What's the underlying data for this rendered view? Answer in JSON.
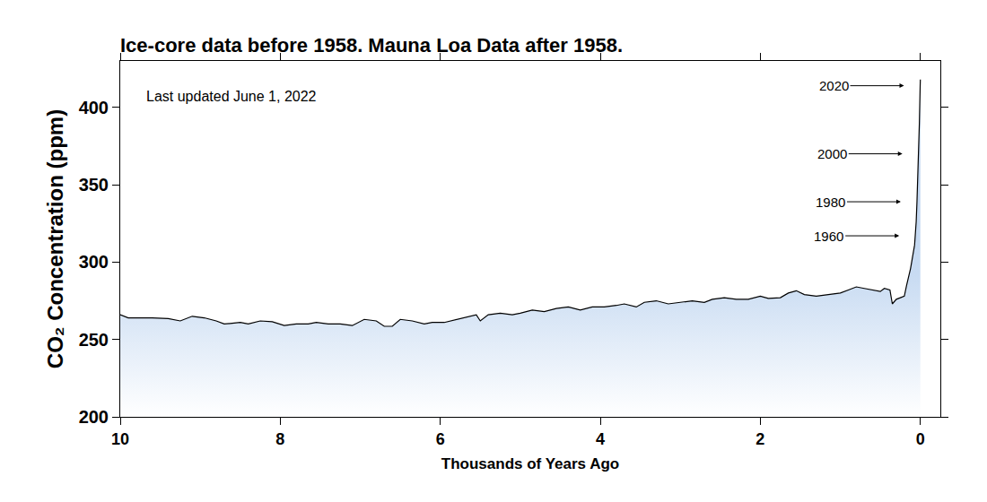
{
  "chart_data": {
    "type": "line",
    "title": "Ice-core data before 1958. Mauna Loa Data after 1958.",
    "x_label": "Thousands of Years Ago",
    "y_label": "CO₂ Concentration (ppm)",
    "xlim": [
      10,
      -0.25
    ],
    "xticks": [
      10,
      8,
      6,
      4,
      2,
      0
    ],
    "ylim": [
      200,
      430
    ],
    "yticks": [
      200,
      250,
      300,
      350,
      400
    ],
    "grid": false,
    "series": [
      {
        "color": "#000000",
        "x": [
          10.0,
          9.9,
          9.6,
          9.4,
          9.25,
          9.1,
          8.95,
          8.8,
          8.7,
          8.5,
          8.4,
          8.25,
          8.1,
          7.95,
          7.8,
          7.65,
          7.55,
          7.4,
          7.25,
          7.1,
          6.95,
          6.8,
          6.7,
          6.6,
          6.5,
          6.35,
          6.2,
          6.1,
          5.95,
          5.8,
          5.65,
          5.55,
          5.5,
          5.4,
          5.25,
          5.1,
          5.0,
          4.85,
          4.7,
          4.55,
          4.4,
          4.25,
          4.1,
          3.95,
          3.8,
          3.7,
          3.55,
          3.45,
          3.3,
          3.15,
          3.0,
          2.85,
          2.7,
          2.6,
          2.45,
          2.3,
          2.15,
          2.0,
          1.9,
          1.75,
          1.65,
          1.55,
          1.45,
          1.3,
          1.15,
          1.0,
          0.9,
          0.8,
          0.7,
          0.6,
          0.5,
          0.45,
          0.38,
          0.35,
          0.3,
          0.25,
          0.2,
          0.172,
          0.122,
          0.072,
          0.062,
          0.052,
          0.042,
          0.032,
          0.022,
          0.012,
          0.002,
          0.0
        ],
        "values": [
          266,
          264,
          264,
          263.5,
          262,
          265,
          264,
          262,
          260,
          261,
          260,
          262,
          261.5,
          259,
          260,
          260,
          261,
          260,
          260,
          259,
          263,
          262,
          258.5,
          258.5,
          263,
          262,
          260,
          261,
          261,
          263,
          265,
          266,
          262,
          266,
          267,
          266,
          267,
          269,
          268,
          270,
          271,
          269,
          271,
          271,
          272,
          273,
          271,
          274,
          275,
          273,
          274,
          275,
          274,
          276,
          277,
          276,
          276,
          278,
          276.5,
          277,
          280,
          281.5,
          279,
          278,
          279,
          280,
          282,
          284,
          283,
          282,
          281,
          283,
          282,
          273,
          276,
          277,
          278,
          285,
          296,
          311,
          317,
          326,
          339,
          354,
          370,
          390,
          414,
          418
        ]
      }
    ],
    "annotations": [
      {
        "text": "Last updated June 1, 2022"
      },
      {
        "text": "2020",
        "x": 0.002,
        "y": 414
      },
      {
        "text": "2000",
        "x": 0.022,
        "y": 370
      },
      {
        "text": "1980",
        "x": 0.042,
        "y": 339
      },
      {
        "text": "1960",
        "x": 0.062,
        "y": 317
      }
    ]
  }
}
